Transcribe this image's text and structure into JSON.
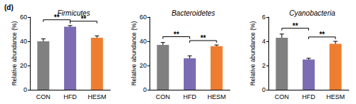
{
  "panel_label": "(d)",
  "chart_data": [
    {
      "type": "bar",
      "title": "Firmicutes",
      "y_label": "Relative abundance (%)",
      "categories": [
        "CON",
        "HFD",
        "HESM"
      ],
      "values": [
        40,
        52,
        43
      ],
      "errors": [
        2,
        1,
        1.5
      ],
      "colors": [
        "#808080",
        "#7b6cb3",
        "#ee7d31"
      ],
      "ylim": [
        0,
        60
      ],
      "yticks": [
        0,
        20,
        40,
        60
      ],
      "grid": false,
      "annotations": [
        {
          "from": "CON",
          "to": "HFD",
          "text": "**"
        },
        {
          "from": "HFD",
          "to": "HESM",
          "text": "**"
        }
      ]
    },
    {
      "type": "bar",
      "title": "Bacteroidetes",
      "y_label": "Relative abundance (%)",
      "categories": [
        "CON",
        "HFD",
        "HESM"
      ],
      "values": [
        37,
        26,
        36
      ],
      "errors": [
        2,
        2,
        1
      ],
      "colors": [
        "#808080",
        "#7b6cb3",
        "#ee7d31"
      ],
      "ylim": [
        0,
        60
      ],
      "yticks": [
        0,
        20,
        40,
        60
      ],
      "grid": false,
      "annotations": [
        {
          "from": "CON",
          "to": "HFD",
          "text": "**"
        },
        {
          "from": "HFD",
          "to": "HESM",
          "text": "**"
        }
      ]
    },
    {
      "type": "bar",
      "title": "Cyanobacteria",
      "y_label": "Relative abundance (%)",
      "categories": [
        "CON",
        "HFD",
        "HESM"
      ],
      "values": [
        4.3,
        2.5,
        3.8
      ],
      "errors": [
        0.3,
        0.1,
        0.2
      ],
      "colors": [
        "#808080",
        "#7b6cb3",
        "#ee7d31"
      ],
      "ylim": [
        0,
        6
      ],
      "yticks": [
        0,
        2,
        4,
        6
      ],
      "grid": false,
      "annotations": [
        {
          "from": "CON",
          "to": "HFD",
          "text": "**"
        },
        {
          "from": "HFD",
          "to": "HESM",
          "text": "**"
        }
      ]
    }
  ]
}
